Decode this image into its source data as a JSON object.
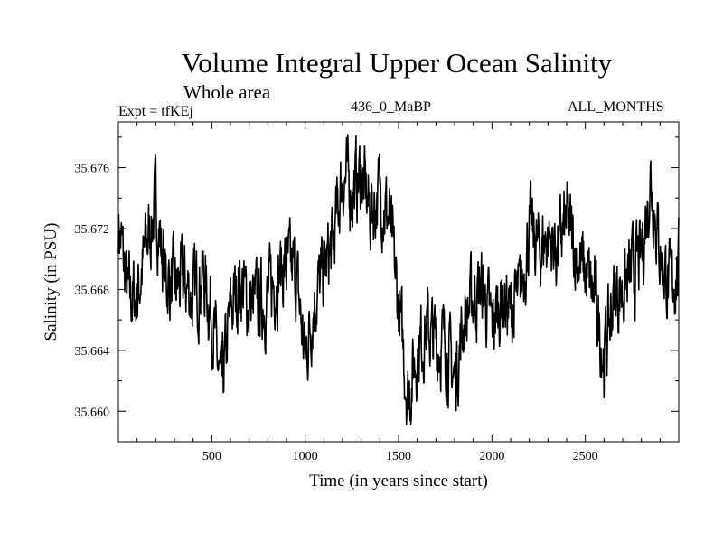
{
  "chart_data": {
    "type": "line",
    "title": "Volume Integral Upper Ocean Salinity",
    "subtitle": "Whole area",
    "annotations": {
      "left": "Expt = tfKEj",
      "center": "436_0_MaBP",
      "right": "ALL_MONTHS"
    },
    "xlabel": "Time (in years since start)",
    "ylabel": "Salinity (in PSU)",
    "xlim": [
      0,
      3000
    ],
    "ylim": [
      35.658,
      35.679
    ],
    "xticks": [
      500,
      1000,
      1500,
      2000,
      2500
    ],
    "yticks": [
      35.66,
      35.664,
      35.668,
      35.672,
      35.676
    ],
    "ytick_labels": [
      "35.660",
      "35.664",
      "35.668",
      "35.672",
      "35.676"
    ],
    "grid": false,
    "series": [
      {
        "x": [
          0,
          50,
          100,
          150,
          200,
          250,
          300,
          350,
          400,
          450,
          500,
          550,
          600,
          650,
          700,
          750,
          800,
          850,
          900,
          950,
          1000,
          1050,
          1100,
          1150,
          1200,
          1250,
          1300,
          1350,
          1400,
          1450,
          1500,
          1550,
          1600,
          1650,
          1700,
          1750,
          1800,
          1850,
          1900,
          1950,
          2000,
          2050,
          2100,
          2150,
          2200,
          2250,
          2300,
          2350,
          2400,
          2450,
          2500,
          2550,
          2600,
          2650,
          2700,
          2750,
          2800,
          2850,
          2900,
          2950,
          3000
        ],
        "y": [
          35.6725,
          35.6675,
          35.6675,
          35.671,
          35.6735,
          35.669,
          35.668,
          35.6685,
          35.6675,
          35.669,
          35.6665,
          35.661,
          35.6665,
          35.6685,
          35.667,
          35.667,
          35.6675,
          35.669,
          35.6695,
          35.669,
          35.6635,
          35.6675,
          35.669,
          35.671,
          35.6755,
          35.6745,
          35.6755,
          35.673,
          35.6745,
          35.6725,
          35.667,
          35.661,
          35.664,
          35.6655,
          35.6645,
          35.6645,
          35.662,
          35.666,
          35.6675,
          35.668,
          35.6655,
          35.6675,
          35.6665,
          35.6675,
          35.672,
          35.6705,
          35.6715,
          35.6705,
          35.6725,
          35.6705,
          35.669,
          35.6675,
          35.6635,
          35.6675,
          35.668,
          35.669,
          35.67,
          35.6755,
          35.6705,
          35.668,
          35.6695
        ]
      }
    ]
  }
}
